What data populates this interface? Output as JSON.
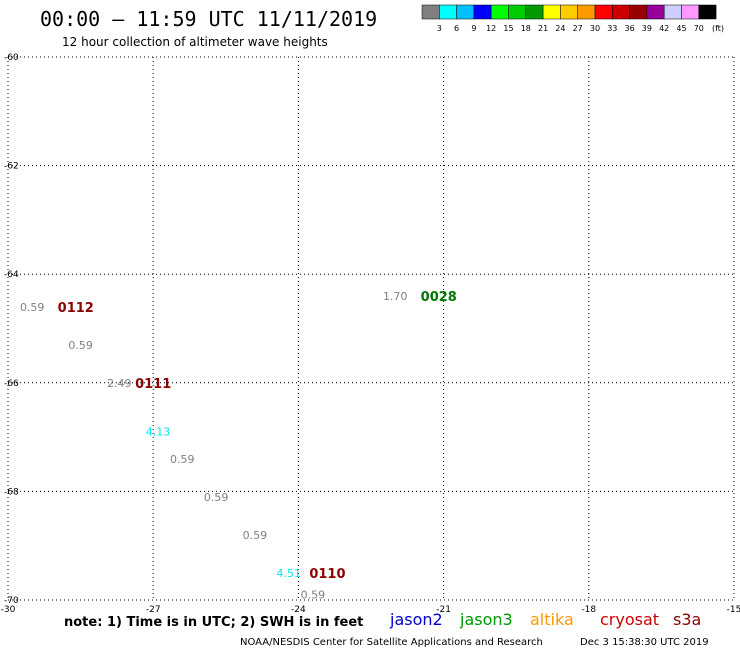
{
  "chart_data": {
    "type": "scatter",
    "title": "00:00 – 11:59 UTC 11/11/2019",
    "subtitle": "12 hour collection of altimeter wave heights",
    "xlim": [
      -30,
      -15
    ],
    "ylim": [
      -70,
      -60
    ],
    "x_ticks": [
      -30,
      -27,
      -24,
      -21,
      -18,
      -15
    ],
    "y_ticks": [
      -60,
      -62,
      -64,
      -66,
      -68,
      -70
    ],
    "x_tick_labels": [
      "-30",
      "-27",
      "-24",
      "-21",
      "-18",
      "-15"
    ],
    "y_tick_labels": [
      "-60",
      "-62",
      "-64",
      "-66",
      "-68",
      "-70"
    ],
    "grid": "dotted",
    "colorbar": {
      "colors": [
        "#808080",
        "#00ffff",
        "#00bfff",
        "#0000ff",
        "#00ff00",
        "#00cc00",
        "#009900",
        "#ffff00",
        "#ffcc00",
        "#ff9900",
        "#ff0000",
        "#cc0000",
        "#990000",
        "#990099",
        "#ccccff",
        "#ff99ff",
        "#000000"
      ],
      "labels": [
        "3",
        "6",
        "9",
        "12",
        "15",
        "18",
        "21",
        "24",
        "27",
        "30",
        "33",
        "36",
        "39",
        "42",
        "45",
        "70"
      ],
      "unit": "(ft)"
    },
    "points": [
      {
        "lon": -29.5,
        "lat": -64.6,
        "value": "0.59",
        "color": "#808080"
      },
      {
        "lon": -28.5,
        "lat": -65.3,
        "value": "0.59",
        "color": "#808080"
      },
      {
        "lon": -27.7,
        "lat": -66.0,
        "value": "2.49",
        "color": "#808080"
      },
      {
        "lon": -26.9,
        "lat": -66.9,
        "value": "4.13",
        "color": "#00e5ee"
      },
      {
        "lon": -26.4,
        "lat": -67.4,
        "value": "0.59",
        "color": "#808080"
      },
      {
        "lon": -25.7,
        "lat": -68.1,
        "value": "0.59",
        "color": "#808080"
      },
      {
        "lon": -24.9,
        "lat": -68.8,
        "value": "0.59",
        "color": "#808080"
      },
      {
        "lon": -24.2,
        "lat": -69.5,
        "value": "4.51",
        "color": "#00e5ee"
      },
      {
        "lon": -23.7,
        "lat": -69.9,
        "value": "0.59",
        "color": "#808080"
      },
      {
        "lon": -22.0,
        "lat": -64.4,
        "value": "1.70",
        "color": "#808080"
      }
    ],
    "pass_labels": [
      {
        "lon": -28.6,
        "lat": -64.6,
        "text": "0112",
        "color": "#8b0000"
      },
      {
        "lon": -27.0,
        "lat": -66.0,
        "text": "0111",
        "color": "#8b0000"
      },
      {
        "lon": -23.4,
        "lat": -69.5,
        "text": "0110",
        "color": "#8b0000"
      },
      {
        "lon": -21.1,
        "lat": -64.4,
        "text": "0028",
        "color": "#007700"
      }
    ]
  },
  "note": "note: 1) Time is in UTC; 2) SWH is in feet",
  "missions": [
    {
      "name": "jason2",
      "color": "#0000cc"
    },
    {
      "name": "jason3",
      "color": "#009900"
    },
    {
      "name": "altika",
      "color": "#ff9900"
    },
    {
      "name": "cryosat",
      "color": "#cc0000"
    },
    {
      "name": "s3a",
      "color": "#880000"
    }
  ],
  "footer_left": "NOAA/NESDIS Center for Satellite Applications and Research",
  "footer_right": "Dec  3 15:38:30 UTC 2019"
}
